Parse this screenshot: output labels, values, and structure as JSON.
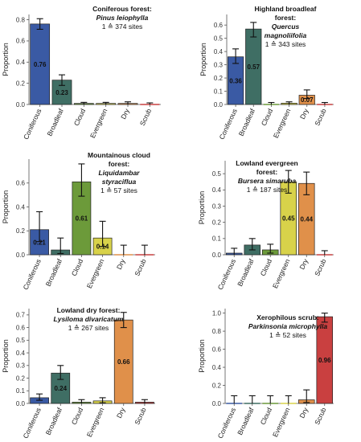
{
  "colors": {
    "Coniferous": "#3a5aa4",
    "Broadleaf": "#3f6e64",
    "Cloud": "#6c9a3a",
    "Evergreen": "#d8d24a",
    "Dry": "#e0904a",
    "Scrub": "#c94040"
  },
  "chart_data": [
    {
      "type": "bar",
      "title_lines": [
        "Coniferous forest:",
        "Pinus leiophylla",
        "1 ≙ 374 sites"
      ],
      "title_italic": [
        false,
        true,
        false
      ],
      "ylabel": "Proportion",
      "ylim": [
        0,
        0.85
      ],
      "yticks": [
        0.0,
        0.2,
        0.4,
        0.6,
        0.8
      ],
      "ytick_labels": [
        "0.0",
        "0.2",
        "0.4",
        "0.6",
        "0.8"
      ],
      "categories": [
        "Coniferous",
        "Broadleaf",
        "Cloud",
        "Evergreen",
        "Dry",
        "Scrub"
      ],
      "values": [
        0.76,
        0.23,
        0.01,
        0.01,
        0.01,
        0.0
      ],
      "err_low": [
        0.71,
        0.18,
        0.0,
        0.0,
        0.0,
        0.0
      ],
      "err_high": [
        0.81,
        0.28,
        0.02,
        0.02,
        0.025,
        0.015
      ],
      "value_labels": [
        "0.76",
        "0.23",
        "",
        "",
        "",
        ""
      ]
    },
    {
      "type": "bar",
      "title_lines": [
        "Highland broadleaf",
        "forest:",
        "Quercus",
        "magnoliifolia",
        "1 ≙ 343 sites"
      ],
      "title_italic": [
        false,
        false,
        true,
        true,
        false
      ],
      "ylabel": "Proportion",
      "ylim": [
        0,
        0.68
      ],
      "yticks": [
        0.0,
        0.1,
        0.2,
        0.3,
        0.4,
        0.5,
        0.6
      ],
      "ytick_labels": [
        "0.0",
        "0.1",
        "0.2",
        "0.3",
        "0.4",
        "0.5",
        "0.6"
      ],
      "categories": [
        "Coniferous",
        "Broadleaf",
        "Cloud",
        "Evergreen",
        "Dry",
        "Scrub"
      ],
      "values": [
        0.36,
        0.57,
        0.0,
        0.01,
        0.07,
        0.0
      ],
      "err_low": [
        0.31,
        0.51,
        0.0,
        0.0,
        0.045,
        0.0
      ],
      "err_high": [
        0.42,
        0.62,
        0.015,
        0.02,
        0.11,
        0.015
      ],
      "value_labels": [
        "0.36",
        "0.57",
        "",
        "",
        "0.07",
        ""
      ]
    },
    {
      "type": "bar",
      "title_lines": [
        "Mountainous cloud",
        "forest:",
        "Liquidambar",
        "styraciflua",
        "1 ≙ 57 sites"
      ],
      "title_italic": [
        false,
        false,
        true,
        true,
        false
      ],
      "ylabel": "Proportion",
      "ylim": [
        0,
        0.8
      ],
      "yticks": [
        0.0,
        0.2,
        0.4,
        0.6
      ],
      "ytick_labels": [
        "0.0",
        "0.2",
        "0.4",
        "0.6"
      ],
      "categories": [
        "Coniferous",
        "Broadleaf",
        "Cloud",
        "Evergreen",
        "Dry",
        "Scrub"
      ],
      "values": [
        0.21,
        0.04,
        0.61,
        0.14,
        0.0,
        0.0
      ],
      "err_low": [
        0.11,
        0.01,
        0.49,
        0.07,
        0.0,
        0.0
      ],
      "err_high": [
        0.36,
        0.14,
        0.76,
        0.28,
        0.08,
        0.08
      ],
      "value_labels": [
        "0.21",
        "",
        "0.61",
        "0.14",
        "",
        ""
      ]
    },
    {
      "type": "bar",
      "title_lines": [
        "Lowland evergreen",
        "forest:",
        "Bursera simaruba",
        "1 ≙ 187 sites"
      ],
      "title_italic": [
        false,
        false,
        true,
        false
      ],
      "ylabel": "Proportion",
      "ylim": [
        0,
        0.58
      ],
      "yticks": [
        0.0,
        0.1,
        0.2,
        0.3,
        0.4,
        0.5
      ],
      "ytick_labels": [
        "0.0",
        "0.1",
        "0.2",
        "0.3",
        "0.4",
        "0.5"
      ],
      "categories": [
        "Coniferous",
        "Broadleaf",
        "Cloud",
        "Evergreen",
        "Dry",
        "Scrub"
      ],
      "values": [
        0.01,
        0.06,
        0.03,
        0.45,
        0.44,
        0.0
      ],
      "err_low": [
        0.0,
        0.03,
        0.01,
        0.38,
        0.37,
        0.0
      ],
      "err_high": [
        0.04,
        0.1,
        0.065,
        0.52,
        0.51,
        0.025
      ],
      "value_labels": [
        "",
        "",
        "",
        "0.45",
        "0.44",
        ""
      ]
    },
    {
      "type": "bar",
      "title_lines": [
        "Lowland dry forest:",
        "Lysiloma divaricatum",
        "1 ≙ 267 sites"
      ],
      "title_italic": [
        false,
        true,
        false
      ],
      "ylabel": "Proportion",
      "ylim": [
        0,
        0.75
      ],
      "yticks": [
        0.0,
        0.1,
        0.2,
        0.3,
        0.4,
        0.5,
        0.6,
        0.7
      ],
      "ytick_labels": [
        "0.0",
        "0.1",
        "0.2",
        "0.3",
        "0.4",
        "0.5",
        "0.6",
        "0.7"
      ],
      "categories": [
        "Coniferous",
        "Broadleaf",
        "Cloud",
        "Evergreen",
        "Dry",
        "Scrub"
      ],
      "values": [
        0.045,
        0.24,
        0.01,
        0.02,
        0.66,
        0.01
      ],
      "err_low": [
        0.025,
        0.19,
        0.0,
        0.005,
        0.6,
        0.0
      ],
      "err_high": [
        0.075,
        0.3,
        0.03,
        0.045,
        0.72,
        0.03
      ],
      "value_labels": [
        "",
        "0.24",
        "",
        "",
        "0.66",
        ""
      ]
    },
    {
      "type": "bar",
      "title_lines": [
        "Xerophilous scrub:",
        "Parkinsonia microphylla",
        "1 ≙ 52 sites"
      ],
      "title_italic": [
        false,
        true,
        false
      ],
      "ylabel": "Proportion",
      "ylim": [
        0,
        1.05
      ],
      "yticks": [
        0.0,
        0.2,
        0.4,
        0.6,
        0.8,
        1.0
      ],
      "ytick_labels": [
        "0.0",
        "0.2",
        "0.4",
        "0.6",
        "0.8",
        "1.0"
      ],
      "categories": [
        "Coniferous",
        "Broadleaf",
        "Cloud",
        "Evergreen",
        "Dry",
        "Scrub"
      ],
      "values": [
        0.0,
        0.0,
        0.0,
        0.0,
        0.04,
        0.96
      ],
      "err_low": [
        0.0,
        0.0,
        0.0,
        0.0,
        0.01,
        0.9
      ],
      "err_high": [
        0.085,
        0.085,
        0.085,
        0.085,
        0.15,
        1.0
      ],
      "value_labels": [
        "",
        "",
        "",
        "",
        "",
        "0.96"
      ]
    }
  ]
}
